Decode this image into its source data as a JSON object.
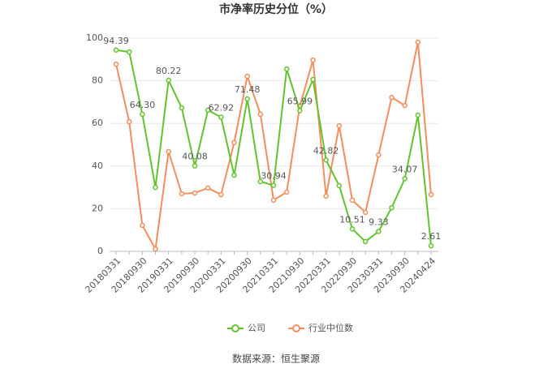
{
  "chart_data": {
    "type": "line",
    "title": "市净率历史分位（%）",
    "categories": [
      "20180331",
      null,
      "20180930",
      null,
      "20190331",
      null,
      "20190930",
      null,
      "20200331",
      null,
      "20200930",
      null,
      "20210331",
      null,
      "20210930",
      null,
      "20220331",
      null,
      "20220930",
      null,
      "20230331",
      null,
      "20230930",
      null,
      "20240424"
    ],
    "series": [
      {
        "name": "公司",
        "color": "#63c32d",
        "values": [
          94.39,
          93.5,
          64.3,
          30,
          80.22,
          67.3,
          40.08,
          66.2,
          62.92,
          35.7,
          71.48,
          32.7,
          30.94,
          85.5,
          65.99,
          80.6,
          42.82,
          30.8,
          10.51,
          4.6,
          9.33,
          20.5,
          34.07,
          63.9,
          2.61
        ],
        "value_labels": [
          "94.39",
          null,
          "64.30",
          null,
          "80.22",
          null,
          "40.08",
          null,
          "62.92",
          null,
          "71.48",
          null,
          "30.94",
          null,
          "65.99",
          null,
          "42.82",
          null,
          "10.51",
          null,
          "9.33",
          null,
          "34.07",
          null,
          "2.61"
        ]
      },
      {
        "name": "行业中位数",
        "color": "#f28e5d",
        "values": [
          87.8,
          60.8,
          12.2,
          1.1,
          46.8,
          27,
          27.4,
          29.7,
          26.6,
          51,
          82.1,
          64.3,
          24,
          27.8,
          68,
          89.7,
          25.9,
          58.9,
          24,
          18.3,
          45.2,
          72.2,
          68.4,
          98.1,
          26.6
        ]
      }
    ],
    "ylim": [
      0,
      100
    ],
    "yticks": [
      0,
      20,
      40,
      60,
      80,
      100
    ],
    "grid": true,
    "source": "数据来源：恒生聚源"
  }
}
